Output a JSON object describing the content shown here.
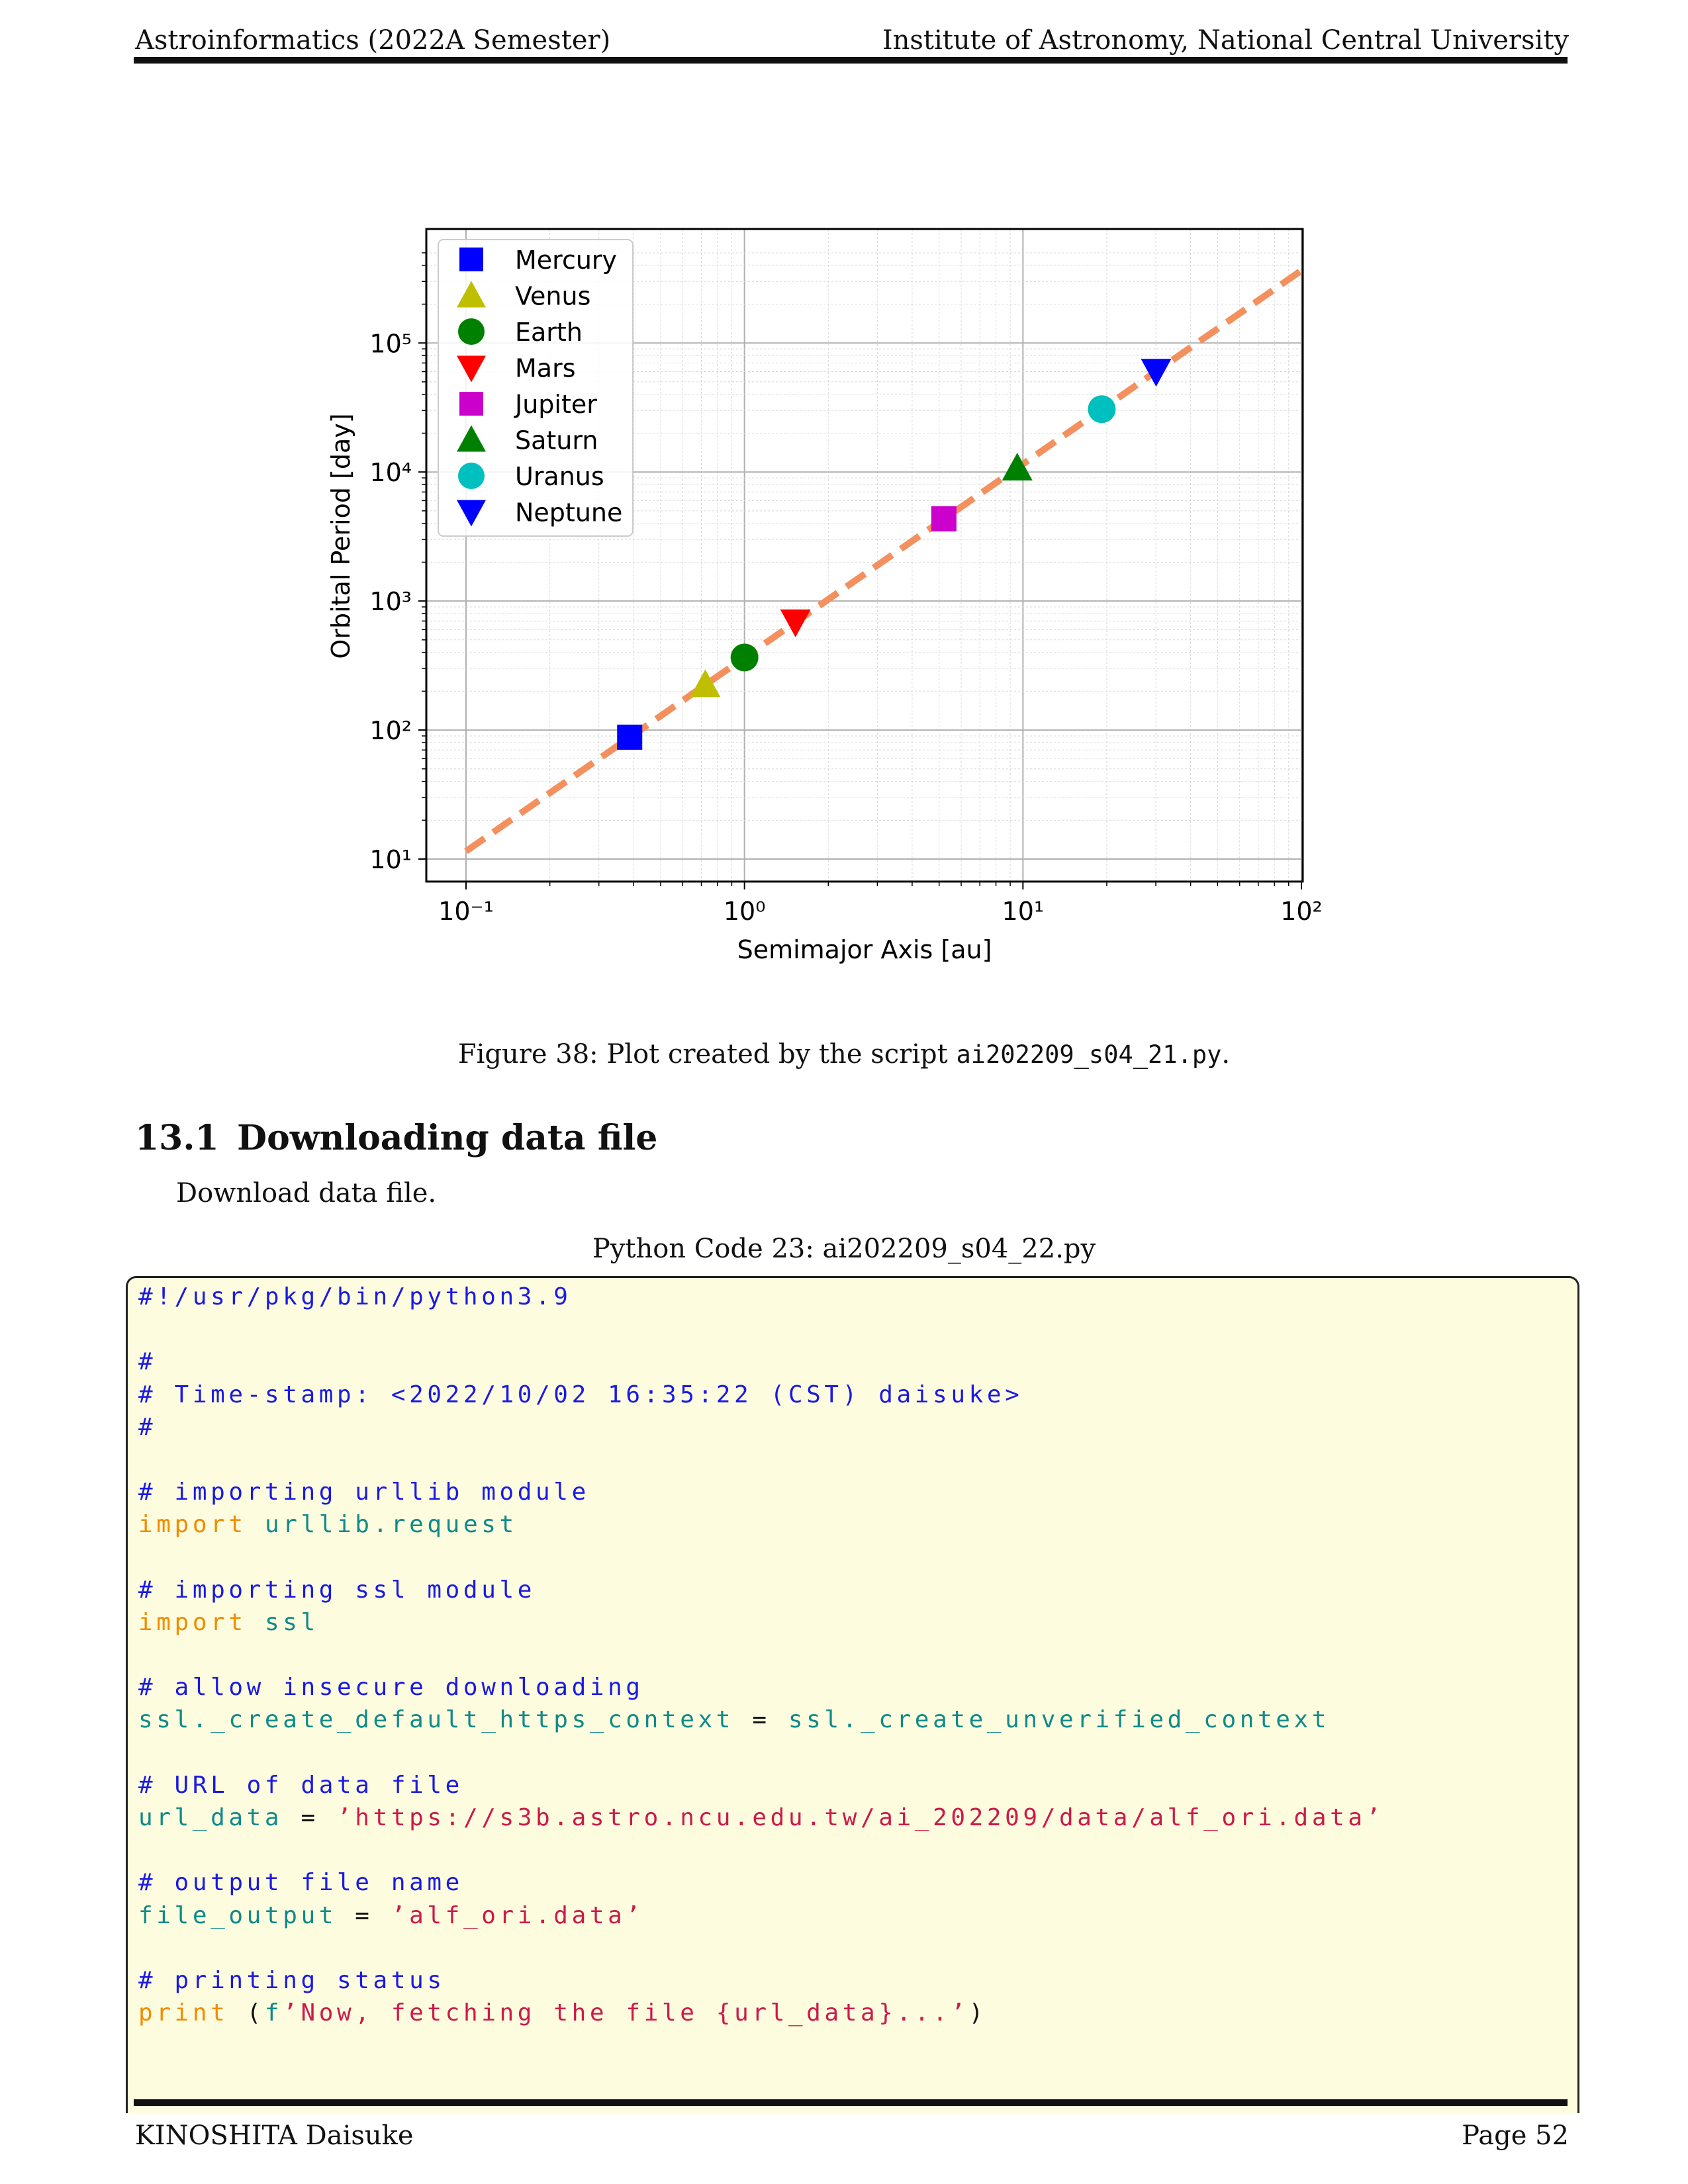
{
  "header": {
    "left": "Astroinformatics (2022A Semester)",
    "right": "Institute of Astronomy, National Central University"
  },
  "footer": {
    "left": "KINOSHITA Daisuke",
    "right": "Page 52"
  },
  "chart_data": {
    "type": "scatter",
    "xlabel": "Semimajor Axis [au]",
    "ylabel": "Orbital Period [day]",
    "xscale": "log",
    "yscale": "log",
    "xlim": [
      0.1,
      100
    ],
    "ylim": [
      10,
      500000
    ],
    "x_ticks": [
      "10⁻¹",
      "10⁰",
      "10¹",
      "10²"
    ],
    "y_ticks": [
      "10¹",
      "10²",
      "10³",
      "10⁴",
      "10⁵"
    ],
    "grid": true,
    "legend_position": "top-left",
    "series": [
      {
        "name": "Mercury",
        "x": 0.387,
        "y": 88,
        "marker": "square",
        "color": "#0000ff"
      },
      {
        "name": "Venus",
        "x": 0.723,
        "y": 225,
        "marker": "triangle-up",
        "color": "#bfbf00"
      },
      {
        "name": "Earth",
        "x": 1.0,
        "y": 365,
        "marker": "circle",
        "color": "#008000"
      },
      {
        "name": "Mars",
        "x": 1.524,
        "y": 687,
        "marker": "triangle-down",
        "color": "#ff0000"
      },
      {
        "name": "Jupiter",
        "x": 5.2,
        "y": 4333,
        "marker": "square",
        "color": "#cc00cc"
      },
      {
        "name": "Saturn",
        "x": 9.54,
        "y": 10759,
        "marker": "triangle-up",
        "color": "#008000"
      },
      {
        "name": "Uranus",
        "x": 19.19,
        "y": 30687,
        "marker": "circle",
        "color": "#00bfbf"
      },
      {
        "name": "Neptune",
        "x": 30.07,
        "y": 60190,
        "marker": "triangle-down",
        "color": "#0000ff"
      }
    ],
    "fit_line": {
      "x": [
        0.1,
        100
      ],
      "y": [
        11.5,
        365000
      ],
      "style": "dashed",
      "color": "#f4905e"
    }
  },
  "figure_caption": {
    "prefix": "Figure 38: Plot created by the script ",
    "script": "ai202209_s04_21.py",
    "suffix": "."
  },
  "section": {
    "number": "13.1",
    "title": "Downloading data file",
    "intro": "Download data file."
  },
  "code_caption": "Python Code 23: ai202209_s04_22.py",
  "code_colors": {
    "comment": "#1a1ae6",
    "keyword": "#f08c00",
    "identifier": "#108a8a",
    "string": "#cc1a4a",
    "background": "#fdfcde"
  },
  "code_lines": [
    [
      [
        "cm",
        "#!/usr/pkg/bin/python3.9"
      ]
    ],
    [],
    [
      [
        "cm",
        "#"
      ]
    ],
    [
      [
        "cm",
        "# Time-stamp: <2022/10/02 16:35:22 (CST) daisuke>"
      ]
    ],
    [
      [
        "cm",
        "#"
      ]
    ],
    [],
    [
      [
        "cm",
        "# importing urllib module"
      ]
    ],
    [
      [
        "kw",
        "import"
      ],
      [
        "op",
        " "
      ],
      [
        "id",
        "urllib.request"
      ]
    ],
    [],
    [
      [
        "cm",
        "# importing ssl module"
      ]
    ],
    [
      [
        "kw",
        "import"
      ],
      [
        "op",
        " "
      ],
      [
        "id",
        "ssl"
      ]
    ],
    [],
    [
      [
        "cm",
        "# allow insecure downloading"
      ]
    ],
    [
      [
        "id",
        "ssl._create_default_https_context"
      ],
      [
        "op",
        " = "
      ],
      [
        "id",
        "ssl._create_unverified_context"
      ]
    ],
    [],
    [
      [
        "cm",
        "# URL of data file"
      ]
    ],
    [
      [
        "id",
        "url_data"
      ],
      [
        "op",
        " = "
      ],
      [
        "st",
        "’https://s3b.astro.ncu.edu.tw/ai_202209/data/alf_ori.data’"
      ]
    ],
    [],
    [
      [
        "cm",
        "# output file name"
      ]
    ],
    [
      [
        "id",
        "file_output"
      ],
      [
        "op",
        " = "
      ],
      [
        "st",
        "’alf_ori.data’"
      ]
    ],
    [],
    [
      [
        "cm",
        "# printing status"
      ]
    ],
    [
      [
        "kw",
        "print"
      ],
      [
        "op",
        " ("
      ],
      [
        "id",
        "f"
      ],
      [
        "st",
        "’Now, fetching the file {url_data}...’"
      ],
      [
        "op",
        ")"
      ]
    ]
  ]
}
